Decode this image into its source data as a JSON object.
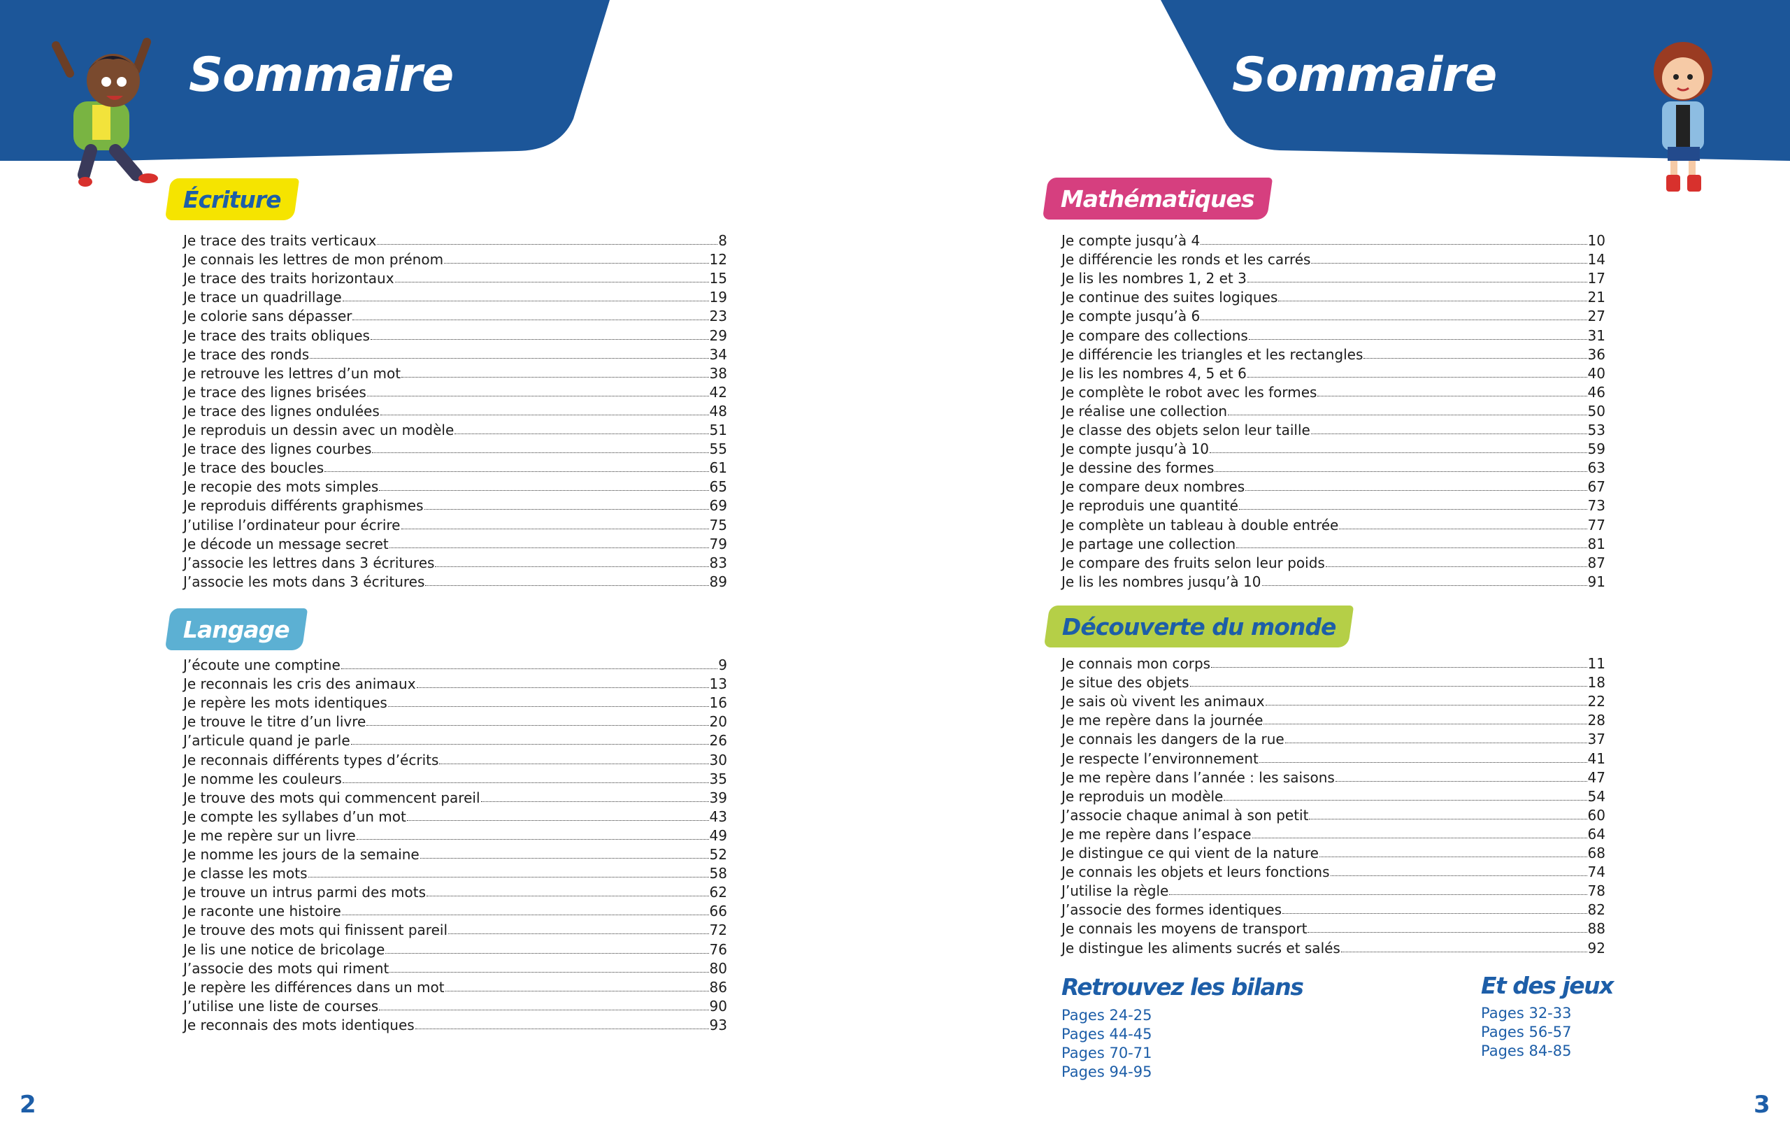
{
  "colors": {
    "banner": "#1c5699",
    "ecriture": "#f5e400",
    "langage": "#5cb0d3",
    "mathematiques": "#d63f7f",
    "decouverte": "#b5cf47",
    "text_blue": "#1d5ea8"
  },
  "left": {
    "title": "Sommaire",
    "page_number": "2",
    "ecriture": {
      "label": "Écriture",
      "items": [
        [
          "Je trace des traits verticaux",
          "8"
        ],
        [
          "Je connais les lettres de mon prénom",
          "12"
        ],
        [
          "Je trace des traits horizontaux",
          "15"
        ],
        [
          "Je trace un quadrillage",
          "19"
        ],
        [
          "Je colorie sans dépasser",
          "23"
        ],
        [
          "Je trace des traits obliques",
          "29"
        ],
        [
          "Je trace des ronds",
          "34"
        ],
        [
          "Je retrouve les lettres d’un mot",
          "38"
        ],
        [
          "Je trace des lignes brisées",
          "42"
        ],
        [
          "Je trace des lignes ondulées",
          "48"
        ],
        [
          "Je reproduis un dessin avec un modèle",
          "51"
        ],
        [
          "Je trace des lignes courbes",
          "55"
        ],
        [
          "Je trace des boucles",
          "61"
        ],
        [
          "Je recopie des mots simples",
          "65"
        ],
        [
          "Je reproduis différents graphismes",
          "69"
        ],
        [
          "J’utilise l’ordinateur pour écrire",
          "75"
        ],
        [
          "Je décode un message secret",
          "79"
        ],
        [
          "J’associe les lettres dans 3 écritures",
          "83"
        ],
        [
          "J’associe les mots dans 3 écritures",
          "89"
        ]
      ]
    },
    "langage": {
      "label": "Langage",
      "items": [
        [
          "J’écoute une comptine",
          "9"
        ],
        [
          "Je reconnais les cris des animaux",
          "13"
        ],
        [
          "Je repère les mots identiques",
          "16"
        ],
        [
          "Je trouve le titre d’un livre",
          "20"
        ],
        [
          "J’articule quand je parle",
          "26"
        ],
        [
          "Je reconnais différents types d’écrits",
          "30"
        ],
        [
          "Je nomme les couleurs",
          "35"
        ],
        [
          "Je trouve des mots qui commencent pareil",
          "39"
        ],
        [
          "Je compte les syllabes d’un mot",
          "43"
        ],
        [
          "Je me repère sur un livre",
          "49"
        ],
        [
          "Je nomme les jours de la semaine",
          "52"
        ],
        [
          "Je classe les mots",
          "58"
        ],
        [
          "Je trouve un intrus parmi des mots",
          "62"
        ],
        [
          "Je raconte une histoire",
          "66"
        ],
        [
          "Je trouve des mots qui finissent pareil",
          "72"
        ],
        [
          "Je lis une notice de bricolage",
          "76"
        ],
        [
          "J’associe des mots qui riment",
          "80"
        ],
        [
          "Je repère les différences dans un mot",
          "86"
        ],
        [
          "J’utilise une liste de courses",
          "90"
        ],
        [
          "Je reconnais des mots identiques",
          "93"
        ]
      ]
    }
  },
  "right": {
    "title": "Sommaire",
    "page_number": "3",
    "mathematiques": {
      "label": "Mathématiques",
      "items": [
        [
          "Je compte jusqu’à 4",
          "10"
        ],
        [
          "Je différencie les ronds et les carrés",
          "14"
        ],
        [
          "Je lis les nombres 1, 2 et 3",
          "17"
        ],
        [
          "Je continue des suites logiques",
          "21"
        ],
        [
          "Je compte jusqu’à 6",
          "27"
        ],
        [
          "Je compare des collections",
          "31"
        ],
        [
          "Je différencie les triangles et les rectangles",
          "36"
        ],
        [
          "Je lis les nombres 4, 5 et 6",
          "40"
        ],
        [
          "Je complète le robot avec les formes",
          "46"
        ],
        [
          "Je réalise une collection",
          "50"
        ],
        [
          "Je classe des objets selon leur taille",
          "53"
        ],
        [
          "Je compte jusqu’à 10",
          "59"
        ],
        [
          "Je dessine des formes",
          "63"
        ],
        [
          "Je compare deux nombres",
          "67"
        ],
        [
          "Je reproduis une quantité",
          "73"
        ],
        [
          "Je complète un tableau à double entrée",
          "77"
        ],
        [
          "Je partage une collection",
          "81"
        ],
        [
          "Je compare des fruits selon leur poids",
          "87"
        ],
        [
          "Je lis les nombres jusqu’à 10",
          "91"
        ]
      ]
    },
    "decouverte": {
      "label": "Découverte du monde",
      "items": [
        [
          "Je connais mon corps",
          "11"
        ],
        [
          "Je situe des objets",
          "18"
        ],
        [
          "Je sais où vivent les animaux",
          "22"
        ],
        [
          "Je me repère dans la journée",
          "28"
        ],
        [
          "Je connais les dangers de la rue",
          "37"
        ],
        [
          "Je respecte l’environnement",
          "41"
        ],
        [
          "Je me repère dans l’année : les saisons",
          "47"
        ],
        [
          "Je reproduis un modèle",
          "54"
        ],
        [
          "J’associe chaque animal à son petit",
          "60"
        ],
        [
          "Je me repère dans l’espace",
          "64"
        ],
        [
          "Je distingue ce qui vient de la nature",
          "68"
        ],
        [
          "Je connais les objets et leurs fonctions",
          "74"
        ],
        [
          "J’utilise la règle",
          "78"
        ],
        [
          "J’associe des formes identiques",
          "82"
        ],
        [
          "Je connais les moyens de transport",
          "88"
        ],
        [
          "Je distingue les aliments sucrés et salés",
          "92"
        ]
      ]
    },
    "bilans": {
      "heading": "Retrouvez les bilans",
      "pages": [
        "Pages 24-25",
        "Pages 44-45",
        "Pages 70-71",
        "Pages 94-95"
      ]
    },
    "jeux": {
      "heading": "Et des jeux",
      "pages": [
        "Pages 32-33",
        "Pages 56-57",
        "Pages 84-85"
      ]
    }
  }
}
